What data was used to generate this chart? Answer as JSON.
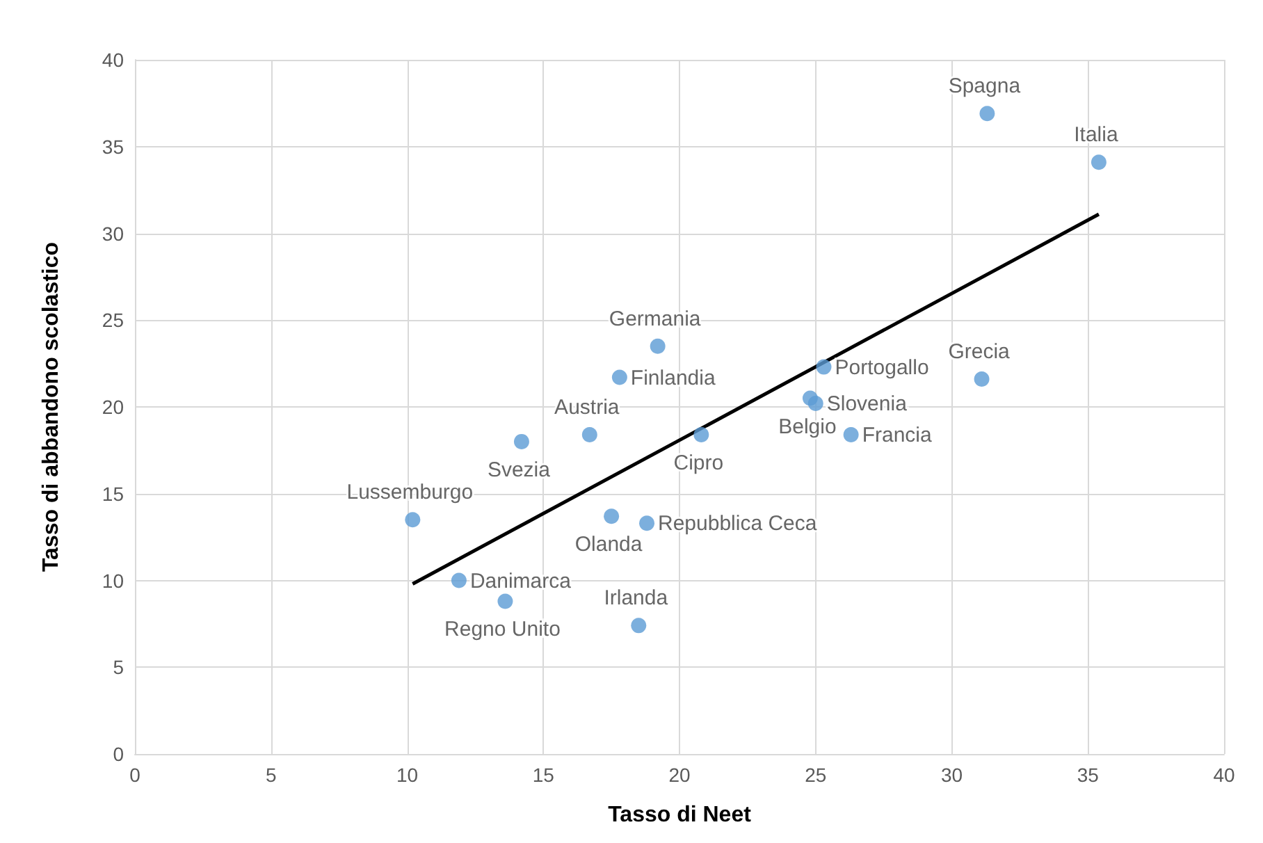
{
  "chart_data": {
    "type": "scatter",
    "xlabel": "Tasso di Neet",
    "ylabel": "Tasso di abbandono scolastico",
    "xlim": [
      0,
      40
    ],
    "xticks": [
      0,
      5,
      10,
      15,
      20,
      25,
      30,
      35,
      40
    ],
    "ylim": [
      0,
      40
    ],
    "yticks": [
      0,
      5,
      10,
      15,
      20,
      25,
      30,
      35,
      40
    ],
    "grid": true,
    "marker": "circle",
    "series": [
      {
        "type": "scatter",
        "color": "#5b9bd5",
        "x": [
          31.3,
          35.4,
          31.1,
          26.3,
          25.3,
          24.8,
          25.0,
          19.2,
          17.8,
          16.7,
          14.2,
          20.8,
          10.2,
          17.5,
          18.8,
          11.9,
          13.6,
          18.5
        ],
        "values": [
          36.9,
          34.1,
          21.6,
          18.4,
          22.3,
          20.5,
          20.2,
          23.5,
          21.7,
          18.4,
          18.0,
          18.4,
          13.5,
          13.7,
          13.3,
          10.0,
          8.8,
          7.4
        ],
        "value_labels": [
          "Spagna",
          "Italia",
          "Grecia",
          "Francia",
          "Portogallo",
          "Belgio",
          "Slovenia",
          "Germania",
          "Finlandia",
          "Austria",
          "Svezia",
          "Cipro",
          "Lussemburgo",
          "Olanda",
          "Repubblica Ceca",
          "Danimarca",
          "Regno Unito",
          "Irlanda"
        ]
      },
      {
        "type": "line",
        "color": "#000000",
        "marker": "none",
        "line_style": "solid",
        "x": [
          10.2,
          35.4
        ],
        "values": [
          9.8,
          31.1
        ]
      }
    ]
  }
}
